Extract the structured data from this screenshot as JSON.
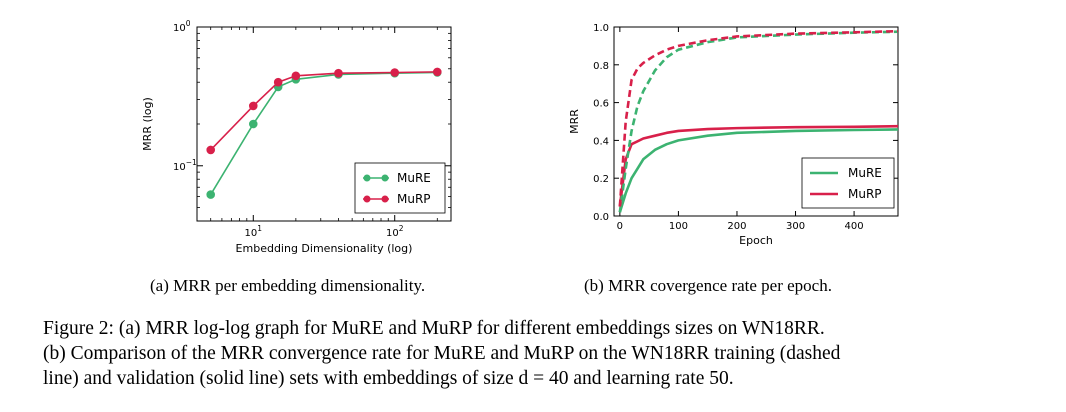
{
  "chart_data": [
    {
      "type": "line",
      "scale": "log-log",
      "xlabel": "Embedding Dimensionality (log)",
      "ylabel": "MRR (log)",
      "xlim": [
        4,
        250
      ],
      "ylim": [
        0.04,
        1.0
      ],
      "xticks": [
        {
          "value": 10,
          "base": "10",
          "exp": "1"
        },
        {
          "value": 100,
          "base": "10",
          "exp": "2"
        }
      ],
      "yticks": [
        {
          "value": 0.1,
          "base": "10",
          "exp": "−1"
        },
        {
          "value": 1,
          "base": "10",
          "exp": "0"
        }
      ],
      "legend": "bottom-right",
      "grid": false,
      "series": [
        {
          "name": "MuRE",
          "color": "#3cb371",
          "x": [
            5,
            10,
            15,
            20,
            40,
            100,
            200
          ],
          "y": [
            0.062,
            0.2,
            0.37,
            0.42,
            0.455,
            0.465,
            0.47
          ]
        },
        {
          "name": "MuRP",
          "color": "#d8204a",
          "x": [
            5,
            10,
            15,
            20,
            40,
            100,
            200
          ],
          "y": [
            0.13,
            0.27,
            0.4,
            0.445,
            0.465,
            0.47,
            0.475
          ]
        }
      ]
    },
    {
      "type": "line",
      "xlabel": "Epoch",
      "ylabel": "MRR",
      "xlim": [
        -10,
        475
      ],
      "ylim": [
        0.0,
        1.0
      ],
      "xticks": [
        0,
        100,
        200,
        300,
        400
      ],
      "yticks": [
        "0.0",
        "0.2",
        "0.4",
        "0.6",
        "0.8",
        "1.0"
      ],
      "legend": "bottom-right",
      "grid": false,
      "series": [
        {
          "name": "MuRE",
          "color": "#3cb371",
          "style": "solid",
          "x": [
            0,
            10,
            20,
            40,
            60,
            80,
            100,
            150,
            200,
            300,
            400,
            475
          ],
          "y": [
            0.02,
            0.12,
            0.2,
            0.3,
            0.35,
            0.38,
            0.4,
            0.425,
            0.44,
            0.45,
            0.455,
            0.458
          ]
        },
        {
          "name": "MuRP",
          "color": "#d8204a",
          "style": "solid",
          "x": [
            0,
            10,
            20,
            40,
            60,
            80,
            100,
            150,
            200,
            300,
            400,
            475
          ],
          "y": [
            0.05,
            0.3,
            0.38,
            0.41,
            0.425,
            0.44,
            0.45,
            0.46,
            0.465,
            0.47,
            0.472,
            0.475
          ]
        },
        {
          "name": "MuRE",
          "color": "#3cb371",
          "style": "dashed",
          "x": [
            0,
            10,
            20,
            30,
            40,
            60,
            80,
            100,
            150,
            200,
            300,
            400,
            475
          ],
          "y": [
            0.02,
            0.25,
            0.45,
            0.58,
            0.66,
            0.77,
            0.84,
            0.88,
            0.92,
            0.945,
            0.96,
            0.97,
            0.975
          ]
        },
        {
          "name": "MuRP",
          "color": "#d8204a",
          "style": "dashed",
          "x": [
            0,
            10,
            20,
            30,
            40,
            60,
            80,
            100,
            150,
            200,
            300,
            400,
            475
          ],
          "y": [
            0.05,
            0.5,
            0.72,
            0.78,
            0.81,
            0.85,
            0.88,
            0.9,
            0.93,
            0.95,
            0.965,
            0.972,
            0.978
          ]
        }
      ],
      "legend_items": [
        {
          "name": "MuRE",
          "color": "#3cb371"
        },
        {
          "name": "MuRP",
          "color": "#d8204a"
        }
      ]
    }
  ],
  "captions": {
    "a": "(a) MRR per embedding dimensionality.",
    "b": "(b) MRR covergence rate per epoch.",
    "figure_line1": "Figure 2: (a) MRR log-log graph for MuRE and MuRP for different embeddings sizes on WN18RR.",
    "figure_line2": "(b) Comparison of the MRR convergence rate for MuRE and MuRP on the WN18RR training (dashed",
    "figure_line3": "line) and validation (solid line) sets with embeddings of size d = 40 and learning rate 50."
  }
}
